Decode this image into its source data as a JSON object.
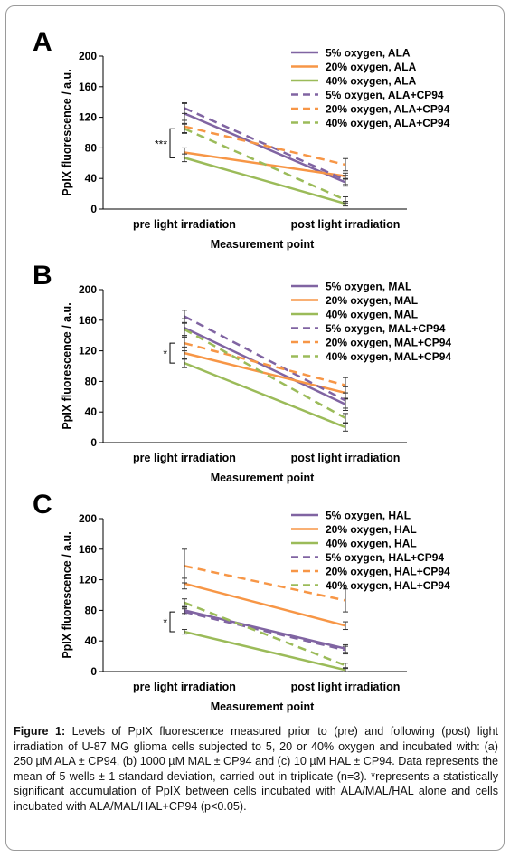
{
  "chart_data": [
    {
      "type": "line",
      "panel_label": "A",
      "ylabel": "PpIX fluorescence  / a.u.",
      "xlabel": "Measurement point",
      "categories": [
        "pre light irradiation",
        "post light irradiation"
      ],
      "ylim": [
        0,
        200
      ],
      "yticks": [
        0,
        40,
        80,
        120,
        160,
        200
      ],
      "legend_position": "top-right",
      "significance_label": "***",
      "series": [
        {
          "name": "5% oxygen, ALA",
          "color": "#8064a2",
          "dash": false,
          "values": [
            125,
            35
          ],
          "err": [
            13,
            5
          ]
        },
        {
          "name": "20% oxygen, ALA",
          "color": "#f79646",
          "dash": false,
          "values": [
            74,
            43
          ],
          "err": [
            6,
            4
          ]
        },
        {
          "name": "40% oxygen, ALA",
          "color": "#9bbb59",
          "dash": false,
          "values": [
            67,
            7
          ],
          "err": [
            5,
            3
          ]
        },
        {
          "name": "5% oxygen, ALA+CP94",
          "color": "#8064a2",
          "dash": true,
          "values": [
            132,
            38
          ],
          "err": [
            7,
            6
          ]
        },
        {
          "name": "20% oxygen, ALA+CP94",
          "color": "#f79646",
          "dash": true,
          "values": [
            108,
            58
          ],
          "err": [
            8,
            8
          ]
        },
        {
          "name": "40% oxygen, ALA+CP94",
          "color": "#9bbb59",
          "dash": true,
          "values": [
            105,
            12
          ],
          "err": [
            6,
            4
          ]
        }
      ]
    },
    {
      "type": "line",
      "panel_label": "B",
      "ylabel": "PpIX fluorescence  / a.u.",
      "xlabel": "Measurement point",
      "categories": [
        "pre light irradiation",
        "post light irradiation"
      ],
      "ylim": [
        0,
        200
      ],
      "yticks": [
        0,
        40,
        80,
        120,
        160,
        200
      ],
      "legend_position": "top-right",
      "significance_label": "*",
      "series": [
        {
          "name": "5% oxygen, MAL",
          "color": "#8064a2",
          "dash": false,
          "values": [
            150,
            50
          ],
          "err": [
            12,
            8
          ]
        },
        {
          "name": "20% oxygen, MAL",
          "color": "#f79646",
          "dash": false,
          "values": [
            117,
            65
          ],
          "err": [
            8,
            8
          ]
        },
        {
          "name": "40% oxygen, MAL",
          "color": "#9bbb59",
          "dash": false,
          "values": [
            104,
            20
          ],
          "err": [
            6,
            5
          ]
        },
        {
          "name": "5% oxygen, MAL+CP94",
          "color": "#8064a2",
          "dash": true,
          "values": [
            165,
            55
          ],
          "err": [
            8,
            10
          ]
        },
        {
          "name": "20% oxygen, MAL+CP94",
          "color": "#f79646",
          "dash": true,
          "values": [
            130,
            75
          ],
          "err": [
            10,
            10
          ]
        },
        {
          "name": "40% oxygen, MAL+CP94",
          "color": "#9bbb59",
          "dash": true,
          "values": [
            148,
            32
          ],
          "err": [
            8,
            6
          ]
        }
      ]
    },
    {
      "type": "line",
      "panel_label": "C",
      "ylabel": "PpIX fluorescence  / a.u.",
      "xlabel": "Measurement point",
      "categories": [
        "pre light irradiation",
        "post light irradiation"
      ],
      "ylim": [
        0,
        200
      ],
      "yticks": [
        0,
        40,
        80,
        120,
        160,
        200
      ],
      "legend_position": "top-right",
      "significance_label": "*",
      "series": [
        {
          "name": "5% oxygen, HAL",
          "color": "#8064a2",
          "dash": false,
          "values": [
            80,
            30
          ],
          "err": [
            4,
            5
          ]
        },
        {
          "name": "20% oxygen, HAL",
          "color": "#f79646",
          "dash": false,
          "values": [
            115,
            60
          ],
          "err": [
            7,
            5
          ]
        },
        {
          "name": "40% oxygen, HAL",
          "color": "#9bbb59",
          "dash": false,
          "values": [
            52,
            2
          ],
          "err": [
            3,
            2
          ]
        },
        {
          "name": "5% oxygen, HAL+CP94",
          "color": "#8064a2",
          "dash": true,
          "values": [
            78,
            28
          ],
          "err": [
            4,
            5
          ]
        },
        {
          "name": "20% oxygen, HAL+CP94",
          "color": "#f79646",
          "dash": true,
          "values": [
            138,
            93
          ],
          "err": [
            22,
            15
          ]
        },
        {
          "name": "40% oxygen, HAL+CP94",
          "color": "#9bbb59",
          "dash": true,
          "values": [
            90,
            8
          ],
          "err": [
            5,
            3
          ]
        }
      ]
    }
  ],
  "caption": {
    "figure_label": "Figure 1:",
    "text": " Levels of PpIX fluorescence measured prior to (pre) and following (post) light irradiation of U-87 MG glioma cells subjected to 5, 20 or 40% oxygen and incubated with: (a) 250 µM ALA ± CP94, (b) 1000 µM MAL ± CP94 and (c) 10 µM HAL ± CP94. Data represents the mean of 5 wells ± 1 standard deviation, carried out in triplicate (n=3). *represents a statistically significant accumulation of PpIX between cells incubated with ALA/MAL/HAL alone and cells incubated with ALA/MAL/HAL+CP94 (p<0.05)."
  }
}
